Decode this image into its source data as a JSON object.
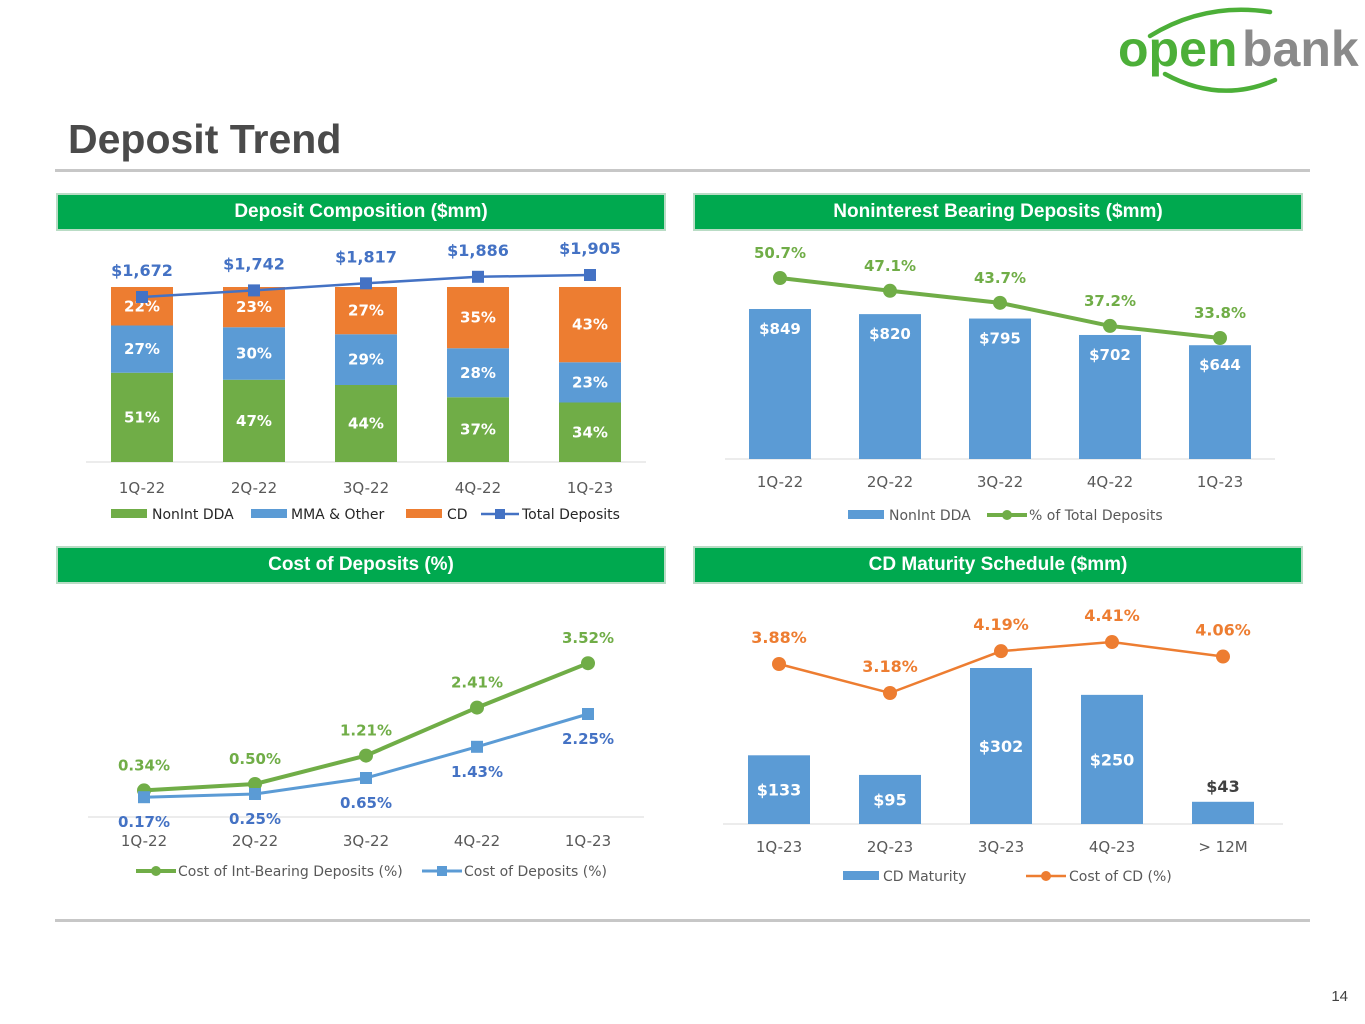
{
  "logo": {
    "word1": "open",
    "word2": "bank",
    "color_green": "#4caf38",
    "color_grey": "#8a8a8a"
  },
  "page": {
    "title": "Deposit Trend",
    "number": "14"
  },
  "colors": {
    "green": "#70ad47",
    "blue": "#5b9bd5",
    "orange": "#ed7d31",
    "navy": "#4472c4",
    "header_green": "#00a94f"
  },
  "panels": [
    {
      "title": "Deposit Composition ($mm)"
    },
    {
      "title": "Noninterest Bearing Deposits ($mm)"
    },
    {
      "title": "Cost of Deposits (%)"
    },
    {
      "title": "CD Maturity Schedule ($mm)"
    }
  ],
  "chart_data": [
    {
      "type": "bar",
      "stacked": true,
      "title": "Deposit Composition ($mm)",
      "categories": [
        "1Q-22",
        "2Q-22",
        "3Q-22",
        "4Q-22",
        "1Q-23"
      ],
      "series": [
        {
          "name": "NonInt DDA",
          "values": [
            51,
            47,
            44,
            37,
            34
          ],
          "labels": [
            "51%",
            "47%",
            "44%",
            "37%",
            "34%"
          ]
        },
        {
          "name": "MMA & Other",
          "values": [
            27,
            30,
            29,
            28,
            23
          ],
          "labels": [
            "27%",
            "30%",
            "29%",
            "28%",
            "23%"
          ]
        },
        {
          "name": "CD",
          "values": [
            22,
            23,
            27,
            35,
            43
          ],
          "labels": [
            "22%",
            "23%",
            "27%",
            "35%",
            "43%"
          ]
        }
      ],
      "line": {
        "name": "Total Deposits",
        "values": [
          1672,
          1742,
          1817,
          1886,
          1905
        ],
        "labels": [
          "$1,672",
          "$1,742",
          "$1,817",
          "$1,886",
          "$1,905"
        ]
      },
      "legend": [
        "NonInt DDA",
        "MMA & Other",
        "CD",
        "Total Deposits"
      ],
      "legend_position": "bottom"
    },
    {
      "type": "bar",
      "title": "Noninterest Bearing Deposits ($mm)",
      "categories": [
        "1Q-22",
        "2Q-22",
        "3Q-22",
        "4Q-22",
        "1Q-23"
      ],
      "series": [
        {
          "name": "NonInt DDA",
          "values": [
            849,
            820,
            795,
            702,
            644
          ],
          "labels": [
            "$849",
            "$820",
            "$795",
            "$702",
            "$644"
          ]
        }
      ],
      "line": {
        "name": "% of Total Deposits",
        "values": [
          50.7,
          47.1,
          43.7,
          37.2,
          33.8
        ],
        "labels": [
          "50.7%",
          "47.1%",
          "43.7%",
          "37.2%",
          "33.8%"
        ]
      },
      "legend": [
        "NonInt DDA",
        "% of Total Deposits"
      ],
      "legend_position": "bottom"
    },
    {
      "type": "line",
      "title": "Cost of Deposits (%)",
      "categories": [
        "1Q-22",
        "2Q-22",
        "3Q-22",
        "4Q-22",
        "1Q-23"
      ],
      "series": [
        {
          "name": "Cost of Int-Bearing Deposits (%)",
          "values": [
            0.34,
            0.5,
            1.21,
            2.41,
            3.52
          ],
          "labels": [
            "0.34%",
            "0.50%",
            "1.21%",
            "2.41%",
            "3.52%"
          ]
        },
        {
          "name": "Cost of Deposits (%)",
          "values": [
            0.17,
            0.25,
            0.65,
            1.43,
            2.25
          ],
          "labels": [
            "0.17%",
            "0.25%",
            "0.65%",
            "1.43%",
            "2.25%"
          ]
        }
      ],
      "legend": [
        "Cost of Int-Bearing Deposits (%)",
        "Cost of Deposits (%)"
      ],
      "legend_position": "bottom"
    },
    {
      "type": "bar",
      "title": "CD Maturity Schedule ($mm)",
      "categories": [
        "1Q-23",
        "2Q-23",
        "3Q-23",
        "4Q-23",
        "> 12M"
      ],
      "series": [
        {
          "name": "CD Maturity",
          "values": [
            133,
            95,
            302,
            250,
            43
          ],
          "labels": [
            "$133",
            "$95",
            "$302",
            "$250",
            "$43"
          ]
        }
      ],
      "line": {
        "name": "Cost of CD (%)",
        "values": [
          3.88,
          3.18,
          4.19,
          4.41,
          4.06
        ],
        "labels": [
          "3.88%",
          "3.18%",
          "4.19%",
          "4.41%",
          "4.06%"
        ]
      },
      "legend": [
        "CD Maturity",
        "Cost of CD (%)"
      ],
      "legend_position": "bottom"
    }
  ]
}
